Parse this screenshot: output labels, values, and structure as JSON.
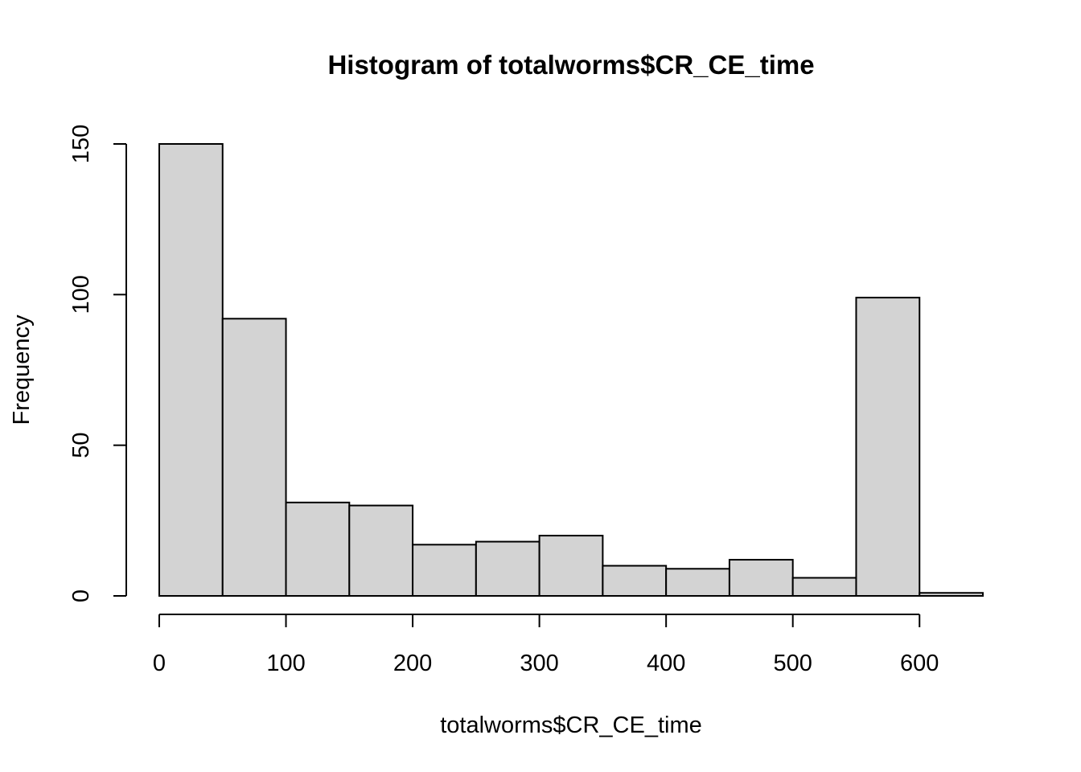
{
  "chart_data": {
    "type": "bar",
    "title": "Histogram of totalworms$CR_CE_time",
    "xlabel": "totalworms$CR_CE_time",
    "ylabel": "Frequency",
    "bin_edges": [
      0,
      50,
      100,
      150,
      200,
      250,
      300,
      350,
      400,
      450,
      500,
      550,
      600,
      650
    ],
    "values": [
      150,
      92,
      31,
      30,
      17,
      18,
      20,
      10,
      9,
      12,
      6,
      99,
      1
    ],
    "xlim": [
      0,
      650
    ],
    "ylim": [
      0,
      150
    ],
    "x_ticks": [
      0,
      100,
      200,
      300,
      400,
      500,
      600
    ],
    "y_ticks": [
      0,
      50,
      100,
      150
    ],
    "grid": false,
    "bar_color": "#d3d3d3",
    "edge_color": "#000000"
  }
}
